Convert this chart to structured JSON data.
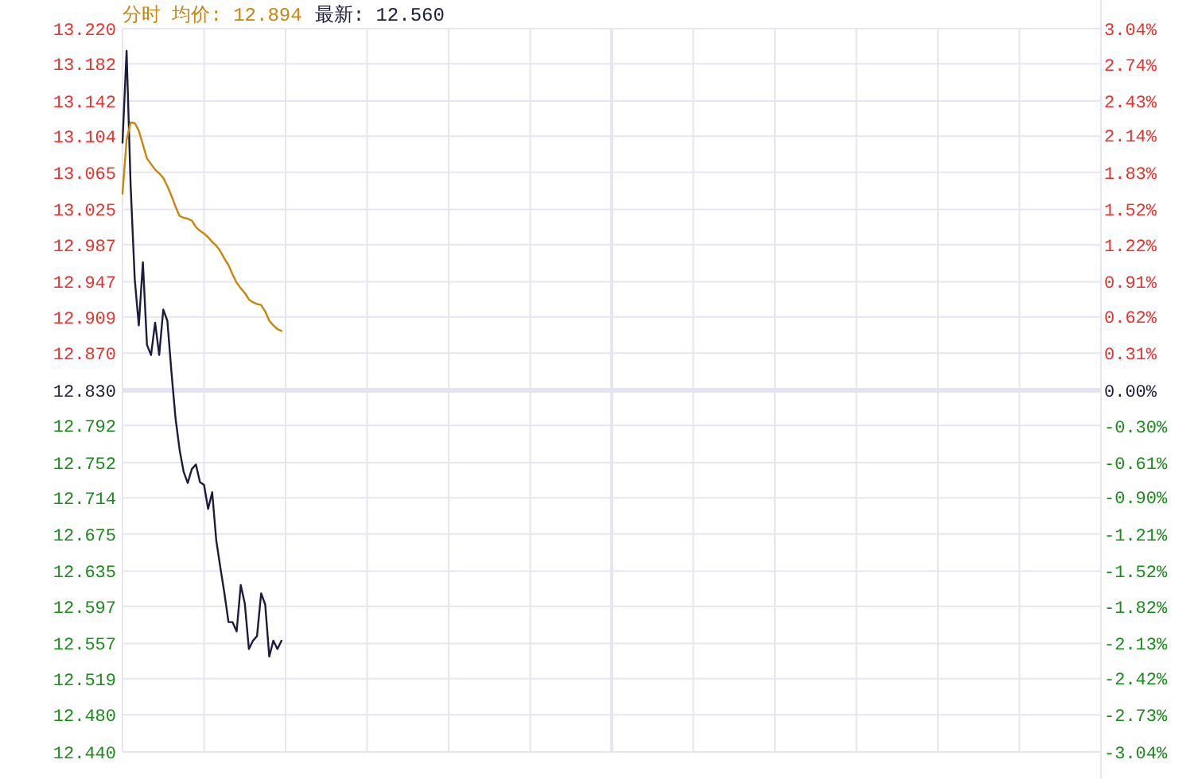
{
  "chart_data": {
    "type": "line",
    "title": "分时 均价: 12.894",
    "subtitle": "最新: 12.560",
    "categories": [
      null,
      null,
      null,
      null,
      null,
      null,
      null,
      null,
      null,
      null,
      null,
      null,
      null,
      null,
      null,
      null,
      null,
      null,
      null,
      null,
      null,
      null,
      null,
      null,
      null,
      null,
      null,
      null,
      null,
      null,
      null,
      null,
      null,
      null,
      null,
      null,
      null,
      null,
      null,
      null,
      null,
      null,
      null,
      null,
      null,
      null,
      null,
      null,
      null,
      null,
      null,
      null,
      null,
      null,
      null,
      null,
      null,
      null,
      null,
      null,
      null,
      null,
      null,
      null,
      null,
      null,
      null,
      null,
      null,
      null,
      null,
      null,
      null,
      null,
      null,
      null,
      null,
      null,
      null,
      null,
      null,
      null,
      null,
      null,
      null,
      null,
      null,
      null,
      null,
      null,
      null,
      null,
      null,
      null,
      null,
      null,
      null,
      null,
      null,
      null,
      null,
      null,
      null,
      null,
      null,
      null,
      null,
      null,
      null,
      null,
      null,
      null,
      null,
      null,
      null,
      null,
      null,
      null,
      null,
      null,
      null,
      null,
      null,
      null,
      null,
      null,
      null,
      null,
      null,
      null,
      null,
      null,
      null,
      null,
      null,
      null,
      null,
      null,
      null,
      null,
      null,
      null,
      null,
      null,
      null,
      null,
      null,
      null,
      null,
      null,
      null,
      null,
      null,
      null,
      null,
      null,
      null,
      null,
      null,
      null,
      null,
      null,
      null,
      null,
      null,
      null,
      null,
      null,
      null,
      null,
      null,
      null,
      null,
      null,
      null,
      null,
      null,
      null,
      null,
      null,
      null,
      null,
      null,
      null,
      null,
      null,
      null,
      null,
      null,
      null,
      null,
      null,
      null,
      null,
      null,
      null,
      null,
      null,
      null,
      null,
      null,
      null,
      null,
      null,
      null,
      null,
      null,
      null,
      null,
      null,
      null,
      null,
      null,
      null,
      null,
      null,
      null,
      null,
      null,
      null,
      null,
      null,
      null,
      null,
      null,
      null,
      null,
      null,
      null,
      null,
      null,
      null,
      null,
      null,
      null,
      null,
      null,
      null,
      null,
      null,
      null
    ],
    "series": [
      {
        "color": "#1c1c3c",
        "values": [
          13.097,
          13.196,
          13.05,
          12.95,
          12.9,
          12.968,
          12.879,
          12.868,
          12.903,
          12.868,
          12.917,
          12.905,
          12.85,
          12.8,
          12.766,
          12.742,
          12.73,
          12.745,
          12.75,
          12.731,
          12.728,
          12.702,
          12.72,
          12.668,
          12.639,
          12.611,
          12.58,
          12.58,
          12.57,
          12.62,
          12.6,
          12.551,
          12.56,
          12.565,
          12.611,
          12.599,
          12.543,
          12.56,
          12.551,
          12.56,
          null,
          null,
          null,
          null,
          null,
          null,
          null,
          null,
          null,
          null,
          null,
          null,
          null,
          null,
          null,
          null,
          null,
          null,
          null,
          null,
          null,
          null,
          null,
          null,
          null,
          null,
          null,
          null,
          null,
          null,
          null,
          null,
          null,
          null,
          null,
          null,
          null,
          null,
          null,
          null,
          null,
          null,
          null,
          null,
          null,
          null,
          null,
          null,
          null,
          null,
          null,
          null,
          null,
          null,
          null,
          null,
          null,
          null,
          null,
          null,
          null,
          null,
          null,
          null,
          null,
          null,
          null,
          null,
          null,
          null,
          null,
          null,
          null,
          null,
          null,
          null,
          null,
          null,
          null,
          null,
          null,
          null,
          null,
          null,
          null,
          null,
          null,
          null,
          null,
          null,
          null,
          null,
          null,
          null,
          null,
          null,
          null,
          null,
          null,
          null,
          null,
          null,
          null,
          null,
          null,
          null,
          null,
          null,
          null,
          null,
          null,
          null,
          null,
          null,
          null,
          null,
          null,
          null,
          null,
          null,
          null,
          null,
          null,
          null,
          null,
          null,
          null,
          null,
          null,
          null,
          null,
          null,
          null,
          null,
          null,
          null,
          null,
          null,
          null,
          null,
          null,
          null,
          null,
          null,
          null,
          null,
          null,
          null,
          null,
          null,
          null,
          null,
          null,
          null,
          null,
          null,
          null,
          null,
          null,
          null,
          null,
          null,
          null,
          null,
          null,
          null,
          null,
          null,
          null,
          null,
          null,
          null,
          null,
          null,
          null,
          null,
          null,
          null,
          null,
          null,
          null,
          null,
          null,
          null,
          null,
          null,
          null,
          null,
          null,
          null,
          null,
          null,
          null,
          null,
          null,
          null,
          null,
          null,
          null,
          null,
          null
        ]
      },
      {
        "color": "#c8860a",
        "values": [
          13.042,
          13.1,
          13.119,
          13.118,
          13.11,
          13.095,
          13.08,
          13.074,
          13.068,
          13.064,
          13.059,
          13.05,
          13.04,
          13.028,
          13.018,
          13.016,
          13.015,
          13.013,
          13.006,
          13.002,
          12.999,
          12.995,
          12.99,
          12.986,
          12.98,
          12.972,
          12.965,
          12.955,
          12.946,
          12.94,
          12.935,
          12.928,
          12.925,
          12.923,
          12.922,
          12.915,
          12.905,
          12.9,
          12.896,
          12.894,
          null,
          null,
          null,
          null,
          null,
          null,
          null,
          null,
          null,
          null,
          null,
          null,
          null,
          null,
          null,
          null,
          null,
          null,
          null,
          null,
          null,
          null,
          null,
          null,
          null,
          null,
          null,
          null,
          null,
          null,
          null,
          null,
          null,
          null,
          null,
          null,
          null,
          null,
          null,
          null,
          null,
          null,
          null,
          null,
          null,
          null,
          null,
          null,
          null,
          null,
          null,
          null,
          null,
          null,
          null,
          null,
          null,
          null,
          null,
          null,
          null,
          null,
          null,
          null,
          null,
          null,
          null,
          null,
          null,
          null,
          null,
          null,
          null,
          null,
          null,
          null,
          null,
          null,
          null,
          null,
          null,
          null,
          null,
          null,
          null,
          null,
          null,
          null,
          null,
          null,
          null,
          null,
          null,
          null,
          null,
          null,
          null,
          null,
          null,
          null,
          null,
          null,
          null,
          null,
          null,
          null,
          null,
          null,
          null,
          null,
          null,
          null,
          null,
          null,
          null,
          null,
          null,
          null,
          null,
          null,
          null,
          null,
          null,
          null,
          null,
          null,
          null,
          null,
          null,
          null,
          null,
          null,
          null,
          null,
          null,
          null,
          null,
          null,
          null,
          null,
          null,
          null,
          null,
          null,
          null,
          null,
          null,
          null,
          null,
          null,
          null,
          null,
          null,
          null,
          null,
          null,
          null,
          null,
          null,
          null,
          null,
          null,
          null,
          null,
          null,
          null,
          null,
          null,
          null,
          null,
          null,
          null,
          null,
          null,
          null,
          null,
          null,
          null,
          null,
          null,
          null,
          null,
          null,
          null,
          null,
          null,
          null,
          null,
          null,
          null,
          null,
          null,
          null,
          null,
          null,
          null,
          null,
          null,
          null,
          null,
          null
        ]
      }
    ],
    "ylim": [
      12.44,
      13.22
    ],
    "yticks": [
      {
        "value": 13.22,
        "label": "13.220"
      },
      13.182,
      13.142,
      13.104,
      13.065,
      13.025,
      12.987,
      12.947,
      12.909,
      {
        "value": 12.87,
        "label": "12.870"
      },
      {
        "value": 12.83,
        "label": "12.830"
      },
      12.792,
      12.752,
      12.714,
      12.675,
      12.635,
      12.597,
      12.557,
      12.519,
      {
        "value": 12.48,
        "label": "12.480"
      },
      {
        "value": 12.44,
        "label": "12.440"
      }
    ],
    "y2lim": [
      -3.04,
      3.04
    ],
    "y2ticks": [
      {
        "value": 3.04,
        "label": "3.04%"
      },
      {
        "value": 2.74,
        "label": "2.74%"
      },
      {
        "value": 2.43,
        "label": "2.43%"
      },
      {
        "value": 2.14,
        "label": "2.14%"
      },
      {
        "value": 1.83,
        "label": "1.83%"
      },
      {
        "value": 1.52,
        "label": "1.52%"
      },
      {
        "value": 1.22,
        "label": "1.22%"
      },
      {
        "value": 0.91,
        "label": "0.91%"
      },
      {
        "value": 0.62,
        "label": "0.62%"
      },
      {
        "value": 0.31,
        "label": "0.31%"
      },
      {
        "value": 0,
        "label": "0.00%"
      },
      {
        "value": -0.3,
        "label": "-0.30%"
      },
      {
        "value": -0.61,
        "label": "-0.61%"
      },
      {
        "value": -0.9,
        "label": "-0.90%"
      },
      {
        "value": -1.21,
        "label": "-1.21%"
      },
      {
        "value": -1.52,
        "label": "-1.52%"
      },
      {
        "value": -1.82,
        "label": "-1.82%"
      },
      {
        "value": -2.13,
        "label": "-2.13%"
      },
      {
        "value": -2.42,
        "label": "-2.42%"
      },
      {
        "value": -2.73,
        "label": "-2.73%"
      },
      {
        "value": -3.04,
        "label": "-3.04%"
      }
    ],
    "ref_lines": [
      {
        "axis": "y",
        "value": 12.83,
        "color": "#e4e4f0"
      }
    ],
    "grid": true,
    "marker": "none",
    "line_style": "solid"
  }
}
